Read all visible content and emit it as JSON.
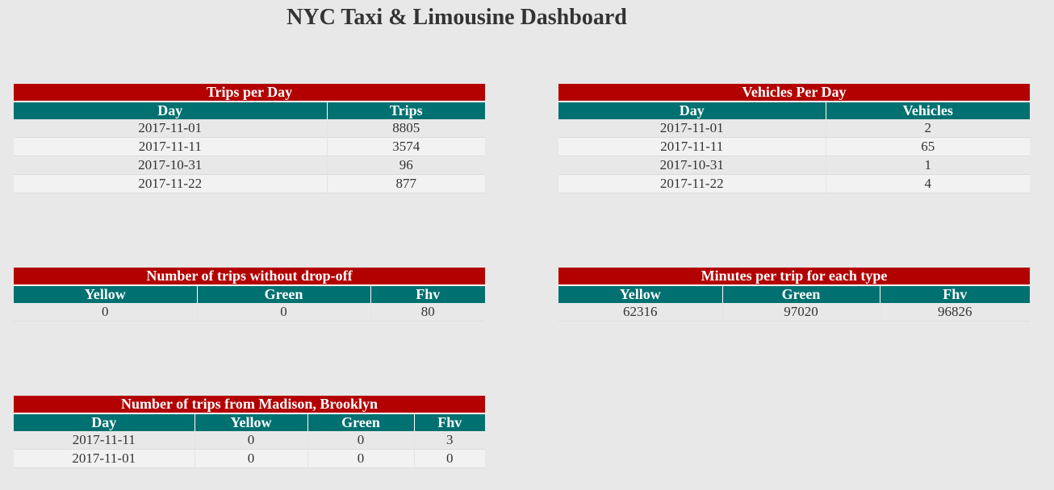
{
  "page": {
    "title": "NYC Taxi & Limousine Dashboard"
  },
  "colors": {
    "background": "#e8e8e8",
    "caption_red": "#b30000",
    "header_teal": "#007070"
  },
  "trips_per_day": {
    "title": "Trips per Day",
    "columns": [
      "Day",
      "Trips"
    ],
    "rows": [
      [
        "2017-11-01",
        "8805"
      ],
      [
        "2017-11-11",
        "3574"
      ],
      [
        "2017-10-31",
        "96"
      ],
      [
        "2017-11-22",
        "877"
      ]
    ]
  },
  "vehicles_per_day": {
    "title": "Vehicles Per Day",
    "columns": [
      "Day",
      "Vehicles"
    ],
    "rows": [
      [
        "2017-11-01",
        "2"
      ],
      [
        "2017-11-11",
        "65"
      ],
      [
        "2017-10-31",
        "1"
      ],
      [
        "2017-11-22",
        "4"
      ]
    ]
  },
  "trips_without_dropoff": {
    "title": "Number of trips without drop-off",
    "columns": [
      "Yellow",
      "Green",
      "Fhv"
    ],
    "rows": [
      [
        "0",
        "0",
        "80"
      ]
    ]
  },
  "minutes_per_trip": {
    "title": "Minutes per trip for each type",
    "columns": [
      "Yellow",
      "Green",
      "Fhv"
    ],
    "rows": [
      [
        "62316",
        "97020",
        "96826"
      ]
    ]
  },
  "trips_from_madison": {
    "title": "Number of trips from Madison, Brooklyn",
    "columns": [
      "Day",
      "Yellow",
      "Green",
      "Fhv"
    ],
    "rows": [
      [
        "2017-11-11",
        "0",
        "0",
        "3"
      ],
      [
        "2017-11-01",
        "0",
        "0",
        "0"
      ]
    ]
  }
}
